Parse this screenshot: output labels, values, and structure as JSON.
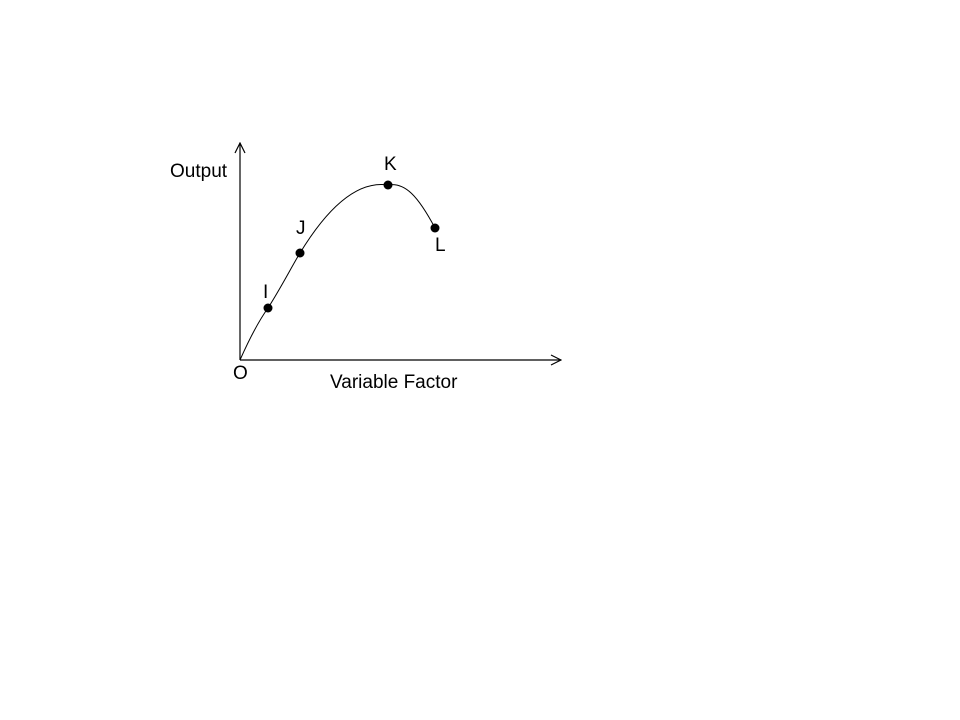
{
  "diagram": {
    "y_axis_label": "Output",
    "x_axis_label": "Variable Factor",
    "origin_label": "O",
    "points": [
      {
        "id": "I",
        "label": "I"
      },
      {
        "id": "J",
        "label": "J"
      },
      {
        "id": "K",
        "label": "K"
      },
      {
        "id": "L",
        "label": "L"
      }
    ],
    "colors": {
      "ink": "#000000",
      "background": "#ffffff"
    }
  }
}
